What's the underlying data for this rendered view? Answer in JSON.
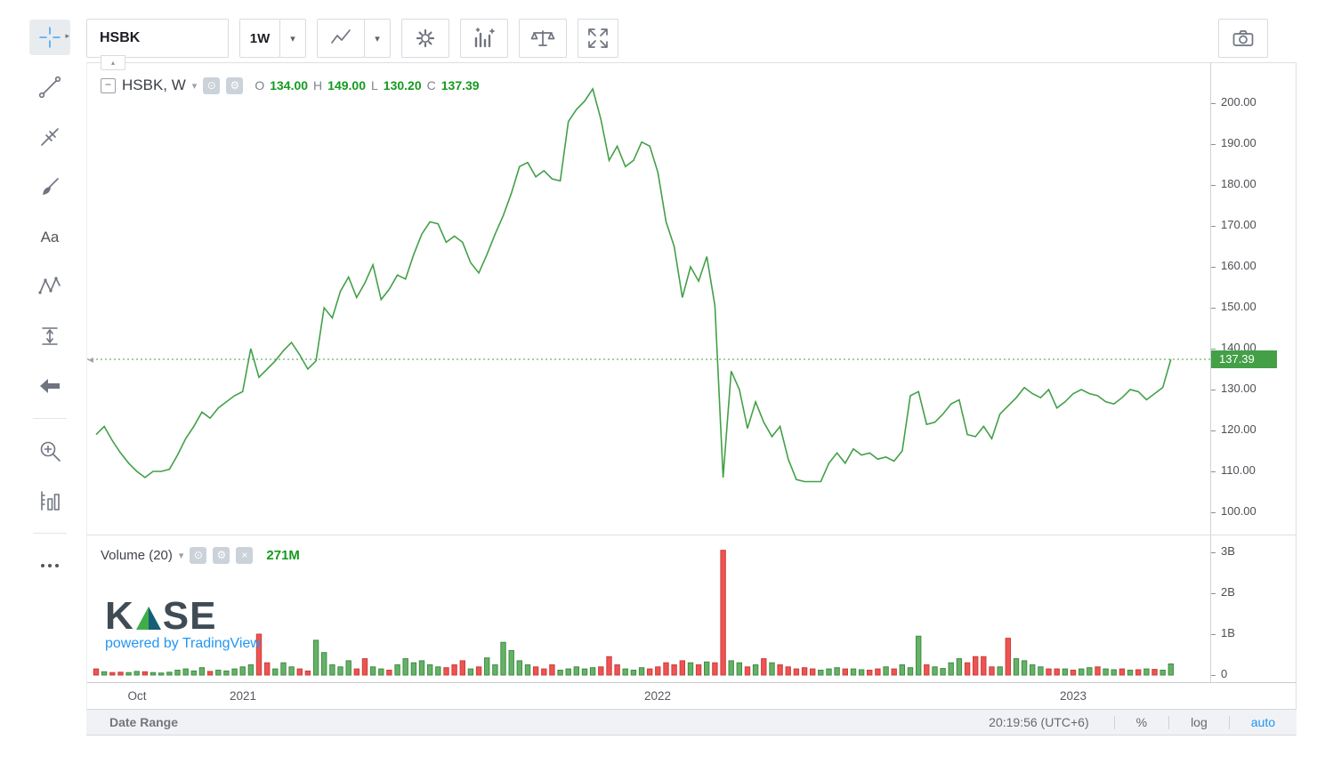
{
  "colors": {
    "accent_green": "#43a047",
    "value_green": "#139b1f",
    "volume_up": "#66b168",
    "volume_up_border": "#3e8e41",
    "volume_down": "#ef5350",
    "volume_down_border": "#c9403c",
    "link_blue": "#2196f3",
    "active_tool_blue": "#42a5f5",
    "current_label_bg": "#43a047"
  },
  "top_toolbar": {
    "symbol": "HSBK",
    "interval": "1W"
  },
  "icons": {
    "caret_down": "▾",
    "submenu_arrow": "▸",
    "collapse_minus": "−",
    "eye": "⊙",
    "gear": "⚙",
    "close": "×",
    "collapse_tab": "▴",
    "edge_marker": "◂"
  },
  "legend": {
    "title": "HSBK, W",
    "ohlc": [
      {
        "label": "O",
        "value": "134.00"
      },
      {
        "label": "H",
        "value": "149.00"
      },
      {
        "label": "L",
        "value": "130.20"
      },
      {
        "label": "C",
        "value": "137.39"
      }
    ]
  },
  "volume_legend": {
    "title": "Volume (20)",
    "value": "271M"
  },
  "watermark": {
    "k": "K",
    "se": "SE",
    "powered": "powered by TradingView"
  },
  "bottom_bar": {
    "date_range": "Date Range",
    "clock": "20:19:56 (UTC+6)",
    "percent": "%",
    "log": "log",
    "auto": "auto"
  },
  "chart_data": {
    "type": "line",
    "title": "HSBK, W — weekly close line with volume",
    "ohlc": {
      "open": 134.0,
      "high": 149.0,
      "low": 130.2,
      "close": 137.39
    },
    "x_axis": {
      "unit": "week",
      "time_ticks": [
        {
          "label": "Oct",
          "index": 5
        },
        {
          "label": "2021",
          "index": 18
        },
        {
          "label": "2022",
          "index": 69
        },
        {
          "label": "2023",
          "index": 120
        }
      ]
    },
    "price": {
      "ylim": [
        95,
        210
      ],
      "ticks": [
        "200.00",
        "190.00",
        "180.00",
        "170.00",
        "160.00",
        "150.00",
        "140.00",
        "130.00",
        "120.00",
        "110.00",
        "100.00"
      ],
      "current": 137.39,
      "current_label": "137.39",
      "values": [
        119,
        121,
        117.5,
        114.5,
        112,
        110,
        108.5,
        110,
        110,
        110.5,
        114,
        118,
        121,
        124.5,
        123,
        125.5,
        127,
        128.5,
        129.5,
        140,
        133,
        135,
        137,
        139.5,
        141.5,
        138.5,
        135,
        137,
        150,
        147.5,
        154,
        157.5,
        152.5,
        156,
        160.5,
        152,
        154.5,
        158,
        157,
        163,
        168,
        171,
        170.5,
        166,
        167.5,
        166,
        161,
        158.5,
        163,
        168,
        172.5,
        178,
        184.5,
        185.5,
        182,
        183.5,
        181.5,
        181,
        195.5,
        198.5,
        200.5,
        203.5,
        196,
        186,
        189.5,
        184.5,
        186,
        190.5,
        189.5,
        183,
        171,
        165,
        152.5,
        160,
        156.5,
        162.5,
        150.5,
        108.5,
        134.5,
        130,
        120.5,
        127,
        122,
        118.5,
        121,
        113,
        108,
        107.5,
        107.5,
        107.5,
        112,
        114.5,
        112,
        115.5,
        114,
        114.5,
        113,
        113.5,
        112.5,
        115,
        128.5,
        129.5,
        121.5,
        122,
        124,
        126.5,
        127.5,
        119,
        118.5,
        121,
        118,
        124,
        126,
        128,
        130.5,
        129,
        128,
        130,
        125.5,
        127,
        129,
        130,
        129,
        128.5,
        127,
        126.5,
        128,
        130,
        129.5,
        127.5,
        129,
        130.5,
        137.4
      ]
    },
    "volume": {
      "type": "bar",
      "unit": "millions_of_shares",
      "note": "negative value = down (red) week, positive = up (green) week",
      "ticks": [
        {
          "label": "3B",
          "value": 3000
        },
        {
          "label": "2B",
          "value": 2000
        },
        {
          "label": "1B",
          "value": 1000
        },
        {
          "label": "0",
          "value": 0
        }
      ],
      "current_label": "271M",
      "values": [
        -150,
        80,
        -60,
        -70,
        60,
        90,
        -80,
        60,
        50,
        70,
        120,
        150,
        100,
        180,
        -90,
        120,
        100,
        150,
        200,
        250,
        -1000,
        -300,
        150,
        300,
        200,
        -150,
        -100,
        850,
        550,
        250,
        200,
        350,
        -150,
        -400,
        200,
        150,
        -120,
        250,
        400,
        300,
        350,
        250,
        200,
        -180,
        -250,
        -350,
        150,
        -200,
        420,
        250,
        800,
        600,
        350,
        250,
        -200,
        -150,
        -250,
        120,
        150,
        200,
        150,
        180,
        -200,
        -450,
        -250,
        150,
        120,
        180,
        -150,
        -200,
        -300,
        -250,
        -350,
        300,
        -250,
        320,
        -300,
        -3050,
        350,
        300,
        -200,
        250,
        -400,
        300,
        -250,
        -200,
        -150,
        -180,
        -150,
        120,
        150,
        180,
        -150,
        150,
        130,
        -120,
        -150,
        200,
        -150,
        250,
        180,
        950,
        -250,
        200,
        160,
        300,
        400,
        -300,
        -450,
        -450,
        -200,
        200,
        -900,
        400,
        350,
        250,
        200,
        -150,
        -150,
        150,
        -120,
        150,
        180,
        -200,
        150,
        130,
        -150,
        120,
        -130,
        150,
        -140,
        120,
        271
      ]
    }
  }
}
